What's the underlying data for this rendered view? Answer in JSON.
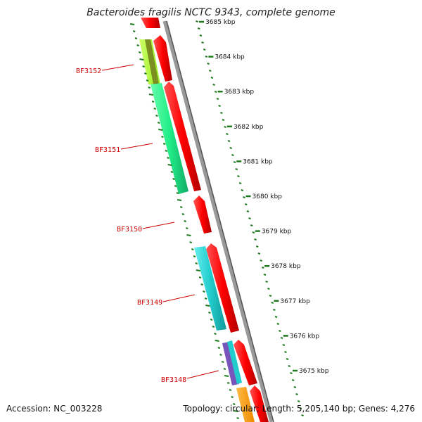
{
  "title": "Bacteroides fragilis NCTC 9343, complete genome",
  "footer": {
    "accession": "Accession: NC_003228",
    "summary": "Topology: circular; Length: 5,205,140 bp; Genes: 4,276"
  },
  "scale_labels": [
    "3685 kbp",
    "3684 kbp",
    "3683 kbp",
    "3682 kbp",
    "3681 kbp",
    "3680 kbp",
    "3679 kbp",
    "3678 kbp",
    "3677 kbp",
    "3676 kbp",
    "3675 kbp"
  ],
  "genes": [
    "BF3152",
    "BF3151",
    "BF3150",
    "BF3149",
    "BF3148"
  ],
  "colors": {
    "cds": "#ff0000",
    "backbone": "#888888",
    "ticks": "#1f7a1f",
    "label": "#cc0000",
    "cog_lime": "#aaff33",
    "cog_olive": "#7a8f1f",
    "cog_green": "#22ee88",
    "cog_cyan": "#22cccc",
    "cog_purple": "#7755bb",
    "cog_orange": "#ff9900"
  }
}
